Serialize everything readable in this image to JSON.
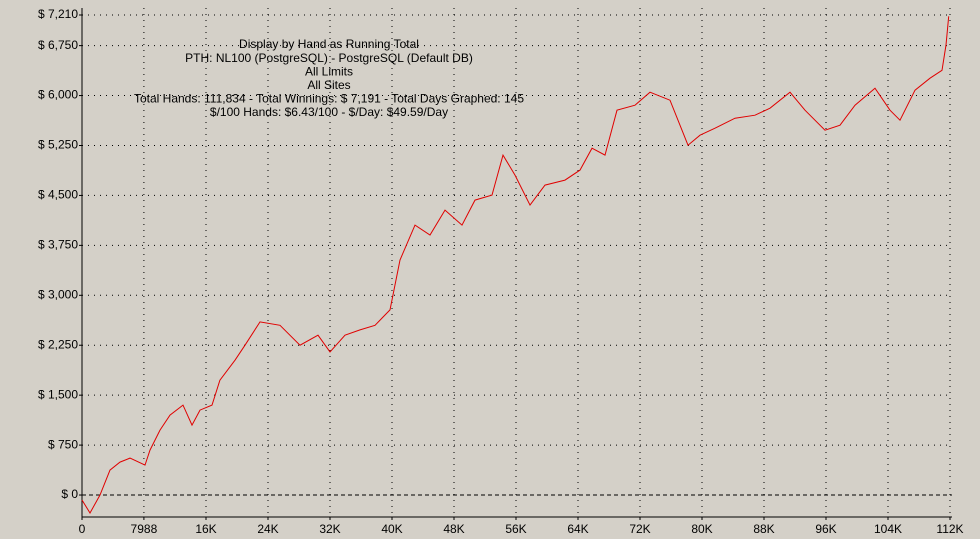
{
  "chart_data": {
    "type": "line",
    "annotations": [
      "Display by Hand as Running Total",
      "PTH: NL100 (PostgreSQL) - PostgreSQL (Default DB)",
      "All Limits",
      "All Sites",
      "Total Hands: 111,834 - Total Winnings: $ 7,191 - Total Days Graphed: 145",
      "$/100 Hands: $6.43/100 - $/Day: $49.59/Day"
    ],
    "x": [
      0,
      1030,
      2320,
      3610,
      4900,
      6190,
      8130,
      8770,
      10060,
      11350,
      13030,
      14190,
      15230,
      16770,
      17800,
      19740,
      21030,
      22970,
      25550,
      28130,
      30450,
      32000,
      33940,
      35870,
      37810,
      39740,
      41030,
      42970,
      44900,
      46840,
      49030,
      50710,
      52900,
      54320,
      55870,
      57810,
      59740,
      62320,
      64260,
      65810,
      67480,
      69030,
      71350,
      73290,
      75870,
      78190,
      79740,
      81680,
      84260,
      86840,
      88770,
      91350,
      93290,
      95870,
      97810,
      99740,
      102320,
      104260,
      105550,
      107480,
      109420,
      110970,
      111480,
      111834
    ],
    "series": [
      {
        "name": "Running Total",
        "color": "#e00000",
        "values": [
          -75,
          -270,
          0,
          375,
          495,
          555,
          450,
          675,
          975,
          1200,
          1350,
          1050,
          1275,
          1350,
          1725,
          2025,
          2250,
          2600,
          2550,
          2250,
          2400,
          2150,
          2400,
          2480,
          2550,
          2780,
          3530,
          4055,
          3905,
          4280,
          4055,
          4430,
          4505,
          5105,
          4805,
          4355,
          4655,
          4730,
          4880,
          5210,
          5105,
          5780,
          5855,
          6050,
          5930,
          5255,
          5405,
          5510,
          5660,
          5705,
          5810,
          6050,
          5780,
          5480,
          5555,
          5855,
          6110,
          5780,
          5630,
          6080,
          6260,
          6380,
          6760,
          7191
        ]
      }
    ],
    "xlim": [
      0,
      112000
    ],
    "xticks": [
      0,
      7988,
      {
        "value": 16000,
        "label": "16K"
      },
      {
        "value": 24000,
        "label": "24K"
      },
      {
        "value": 32000,
        "label": "32K"
      },
      {
        "value": 40000,
        "label": "40K"
      },
      {
        "value": 48000,
        "label": "48K"
      },
      {
        "value": 56000,
        "label": "56K"
      },
      {
        "value": 64000,
        "label": "64K"
      },
      {
        "value": 72000,
        "label": "72K"
      },
      {
        "value": 80000,
        "label": "80K"
      },
      {
        "value": 88000,
        "label": "88K"
      },
      {
        "value": 96000,
        "label": "96K"
      },
      {
        "value": 104000,
        "label": "104K"
      },
      {
        "value": 112000,
        "label": "112K"
      }
    ],
    "ylim": [
      -330,
      7210
    ],
    "yticks": [
      {
        "value": 0,
        "label": "$ 0"
      },
      {
        "value": 750,
        "label": "$ 750"
      },
      {
        "value": 1500,
        "label": "$ 1,500"
      },
      {
        "value": 2250,
        "label": "$ 2,250"
      },
      {
        "value": 3000,
        "label": "$ 3,000"
      },
      {
        "value": 3750,
        "label": "$ 3,750"
      },
      {
        "value": 4500,
        "label": "$ 4,500"
      },
      {
        "value": 5250,
        "label": "$ 5,250"
      },
      {
        "value": 6000,
        "label": "$ 6,000"
      },
      {
        "value": 6750,
        "label": "$ 6,750"
      },
      {
        "value": 7210,
        "label": "$ 7,210"
      }
    ],
    "grid": true
  }
}
